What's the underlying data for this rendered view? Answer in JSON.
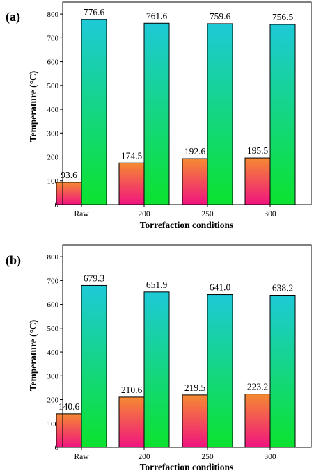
{
  "colors": {
    "series1_top": "#f58a32",
    "series1_bottom": "#f0147f",
    "series2_top": "#1ec9d7",
    "series2_bottom": "#0be32e"
  },
  "chart_data": [
    {
      "type": "bar",
      "panel_label": "(a)",
      "categories": [
        "Raw",
        "200",
        "250",
        "300"
      ],
      "series": [
        {
          "values": [
            93.6,
            174.5,
            192.6,
            195.5
          ],
          "labels": [
            "93.6",
            "174.5",
            "192.6",
            "195.5"
          ]
        },
        {
          "values": [
            776.6,
            761.6,
            759.6,
            756.5
          ],
          "labels": [
            "776.6",
            "761.6",
            "759.6",
            "756.5"
          ]
        }
      ],
      "xlabel": "Torrefaction conditions",
      "ylabel": "Temperature (°C)",
      "ylim": [
        0,
        850
      ],
      "yticks": [
        "0",
        "100",
        "200",
        "300",
        "400",
        "500",
        "600",
        "700",
        "800"
      ],
      "grid": false,
      "legend": "none"
    },
    {
      "type": "bar",
      "panel_label": "(b)",
      "categories": [
        "Raw",
        "200",
        "250",
        "300"
      ],
      "series": [
        {
          "values": [
            140.6,
            210.6,
            219.5,
            223.2
          ],
          "labels": [
            "140.6",
            "210.6",
            "219.5",
            "223.2"
          ]
        },
        {
          "values": [
            679.3,
            651.9,
            641.0,
            638.2
          ],
          "labels": [
            "679.3",
            "651.9",
            "641.0",
            "638.2"
          ]
        }
      ],
      "xlabel": "Torrefaction conditions",
      "ylabel": "Temperature (°C)",
      "ylim": [
        0,
        850
      ],
      "yticks": [
        "0",
        "100",
        "200",
        "300",
        "400",
        "500",
        "600",
        "700",
        "800"
      ],
      "grid": false,
      "legend": "none"
    }
  ]
}
